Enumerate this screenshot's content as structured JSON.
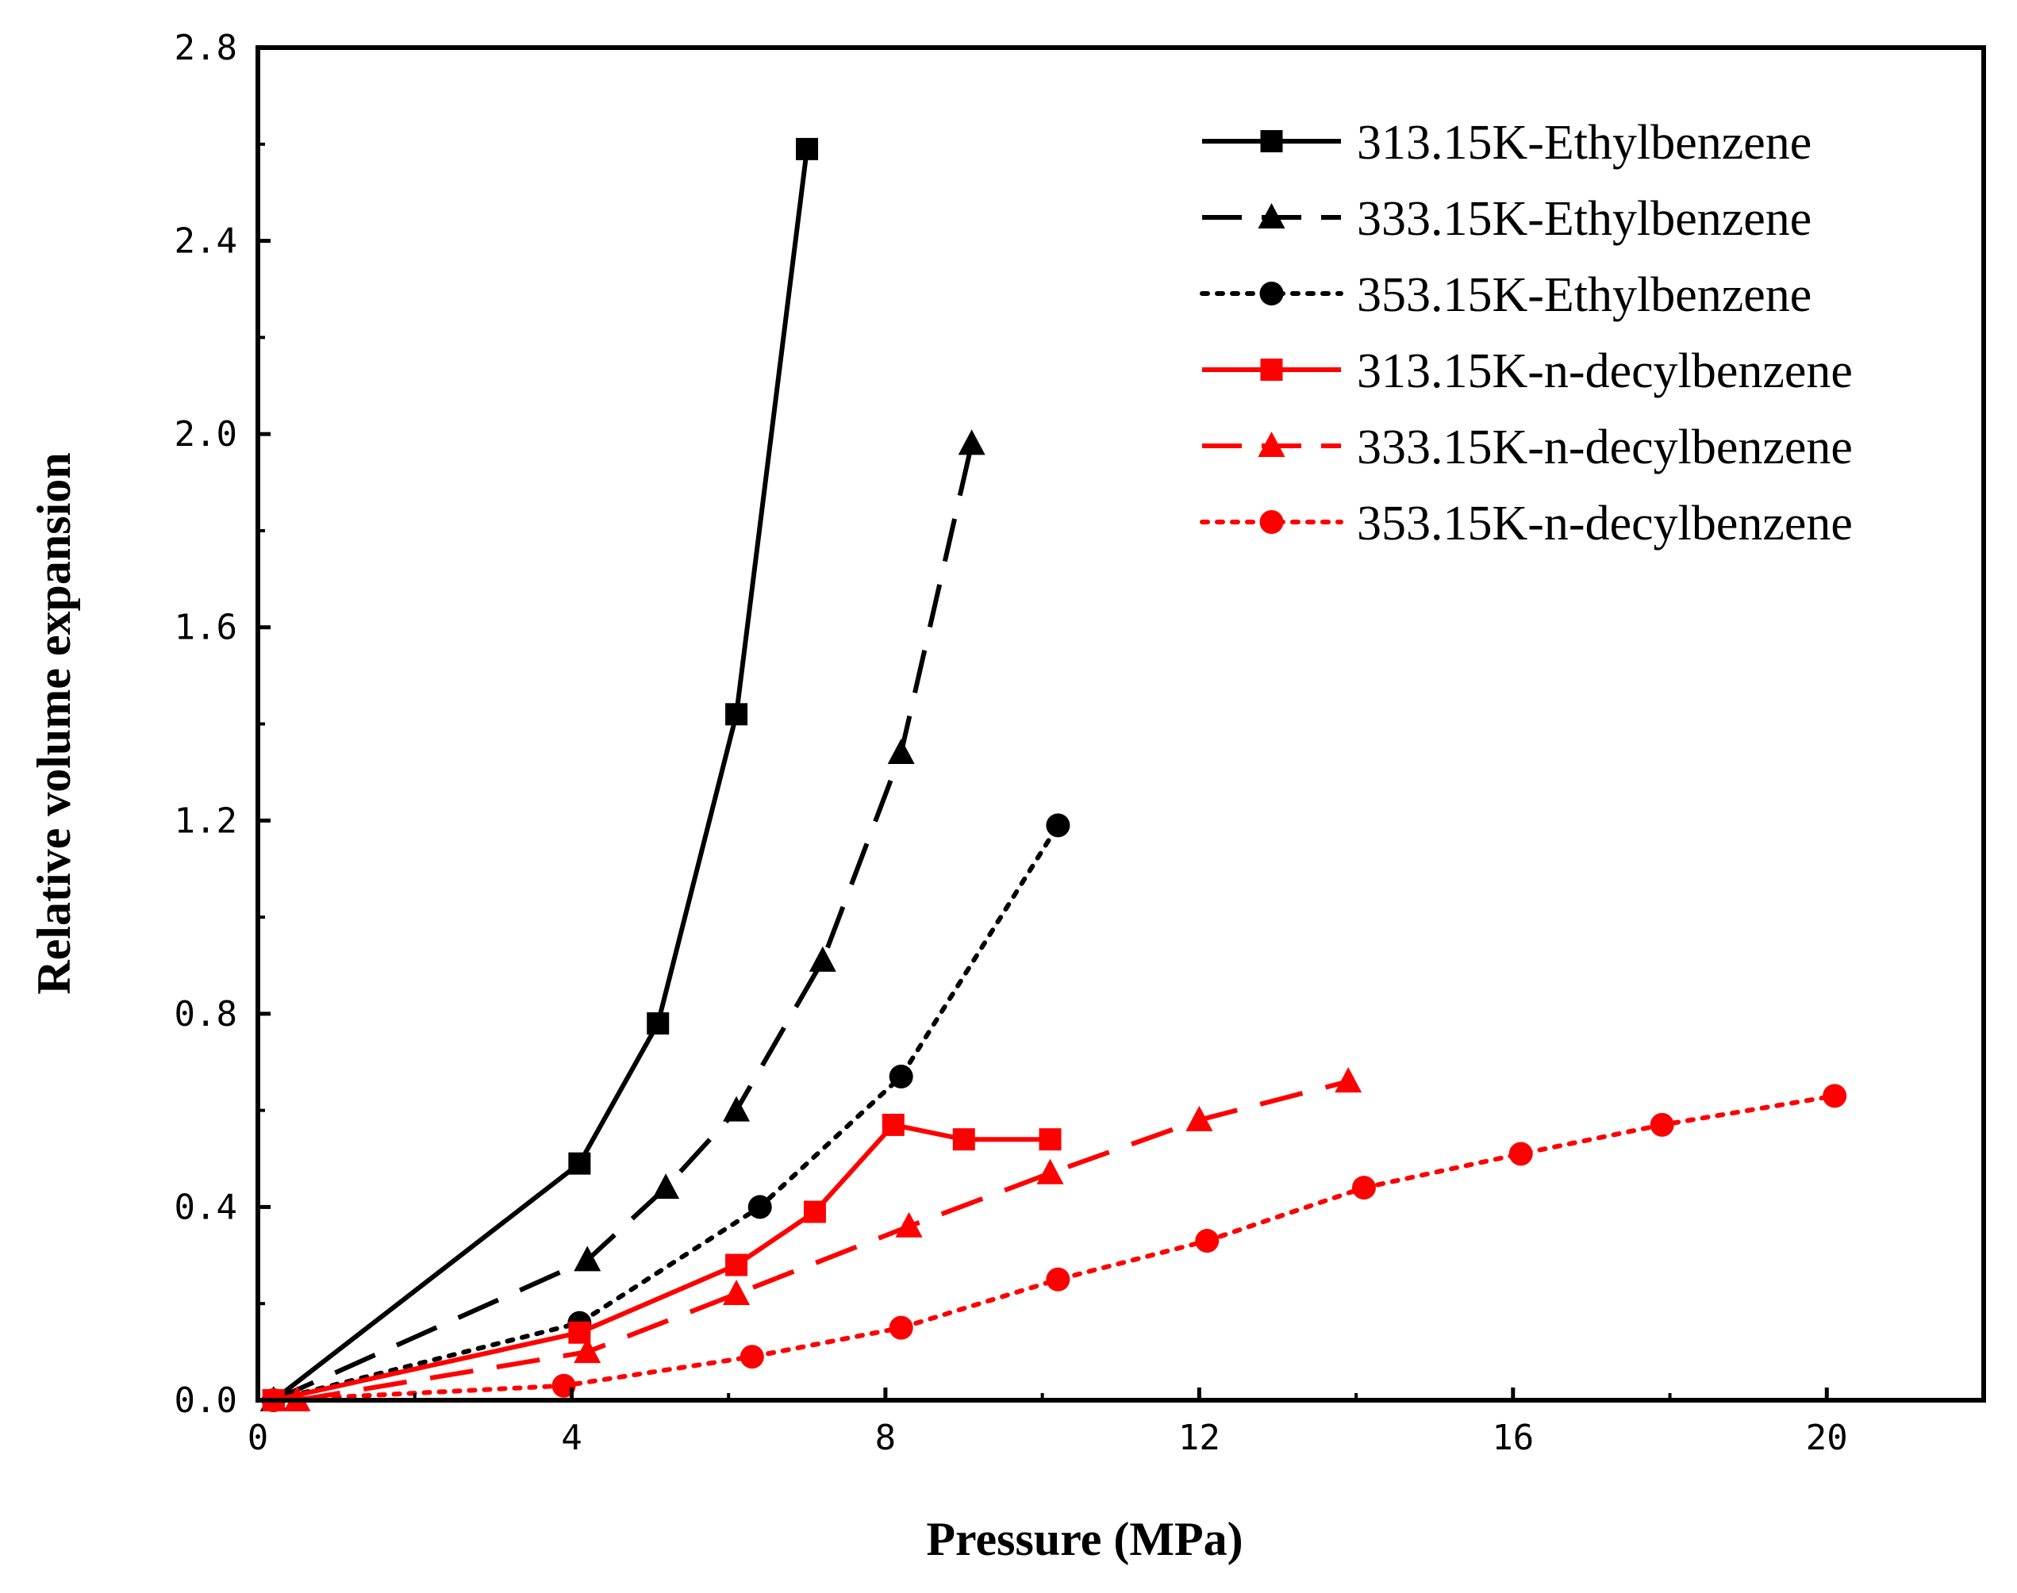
{
  "chart_data": {
    "type": "line",
    "title": "",
    "xlabel": "Pressure  (MPa)",
    "ylabel": "Relative volume expansion",
    "xlim": [
      0,
      22
    ],
    "ylim": [
      0,
      2.8
    ],
    "xticks": [
      0,
      4,
      8,
      12,
      16,
      20
    ],
    "yticks": [
      0,
      0.4,
      0.8,
      1.2,
      1.6,
      2.0,
      2.4,
      2.8
    ],
    "xtick_labels": [
      "0",
      "4",
      "8",
      "12",
      "16",
      "20"
    ],
    "ytick_labels": [
      "0.0",
      "0.4",
      "0.8",
      "1.2",
      "1.6",
      "2.0",
      "2.4",
      "2.8"
    ],
    "grid": false,
    "legend_position": "top-right",
    "series": [
      {
        "name": "313.15K-Ethylbenzene",
        "color": "#000000",
        "line_style": "solid",
        "marker": "square",
        "x": [
          0.2,
          4.1,
          5.1,
          6.1,
          7.0
        ],
        "y": [
          0.0,
          0.49,
          0.78,
          1.42,
          2.59
        ]
      },
      {
        "name": "333.15K-Ethylbenzene",
        "color": "#000000",
        "line_style": "dashed",
        "marker": "triangle",
        "x": [
          0.2,
          4.2,
          5.2,
          6.1,
          7.2,
          8.2,
          9.1
        ],
        "y": [
          0.0,
          0.29,
          0.44,
          0.6,
          0.91,
          1.34,
          1.98
        ]
      },
      {
        "name": "353.15K-Ethylbenzene",
        "color": "#000000",
        "line_style": "dotted",
        "marker": "circle",
        "x": [
          0.2,
          4.1,
          6.4,
          8.2,
          10.2
        ],
        "y": [
          0.0,
          0.16,
          0.4,
          0.67,
          1.19
        ]
      },
      {
        "name": "313.15K-n-decylbenzene",
        "color": "#ff0000",
        "line_style": "solid",
        "marker": "square",
        "x": [
          0.2,
          4.1,
          6.1,
          7.1,
          8.1,
          9.0,
          10.1
        ],
        "y": [
          0.0,
          0.14,
          0.28,
          0.39,
          0.57,
          0.54,
          0.54
        ]
      },
      {
        "name": "333.15K-n-decylbenzene",
        "color": "#ff0000",
        "line_style": "dashed",
        "marker": "triangle",
        "x": [
          0.5,
          4.2,
          6.1,
          8.3,
          10.1,
          12.0,
          13.9
        ],
        "y": [
          0.0,
          0.1,
          0.22,
          0.36,
          0.47,
          0.58,
          0.66
        ]
      },
      {
        "name": "353.15K-n-decylbenzene",
        "color": "#ff0000",
        "line_style": "dotted",
        "marker": "circle",
        "x": [
          0.2,
          3.9,
          6.3,
          8.2,
          10.2,
          12.1,
          14.1,
          16.1,
          17.9,
          20.1
        ],
        "y": [
          0.0,
          0.03,
          0.09,
          0.15,
          0.25,
          0.33,
          0.44,
          0.51,
          0.57,
          0.63
        ]
      }
    ]
  }
}
